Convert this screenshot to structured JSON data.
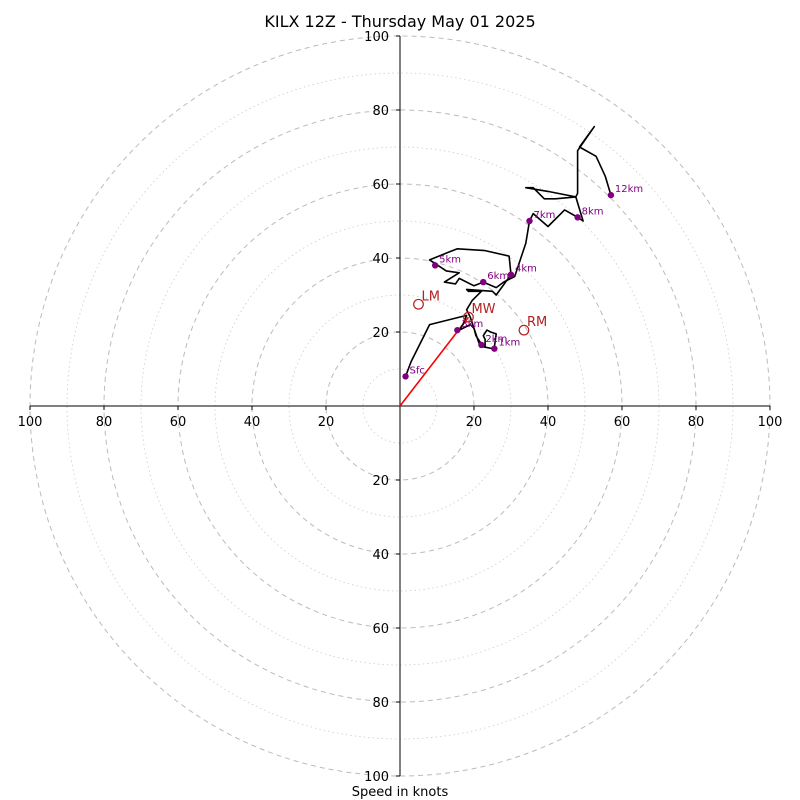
{
  "chart_data": {
    "type": "line",
    "title": "KILX 12Z - Thursday May 01 2025",
    "xlabel": "Speed in knots",
    "ylabel": "",
    "xlim": [
      -100,
      100
    ],
    "ylim": [
      -100,
      100
    ],
    "ring_step": 10,
    "ring_labels": [
      20,
      40,
      60,
      80,
      100
    ],
    "left_ticks": [
      "100",
      "80",
      "60",
      "40",
      "20"
    ],
    "right_ticks": [
      "20",
      "40",
      "60",
      "80",
      "100"
    ],
    "top_ticks": [
      "100",
      "80",
      "60",
      "40",
      "20"
    ],
    "bottom_ticks": [
      "20",
      "40",
      "60",
      "80",
      "100"
    ],
    "colors": {
      "trace": "#000000",
      "height_marker": "#800080",
      "storm_motion": "#b22222",
      "mean_wind_vector": "#ff0000",
      "ring_major": "#bbbbbb",
      "ring_minor": "#cccccc"
    },
    "series": [
      {
        "values": [
          [
            1.5,
            8
          ],
          [
            3,
            12
          ],
          [
            8,
            22
          ],
          [
            18,
            24.5
          ],
          [
            17,
            22
          ],
          [
            16,
            20.5
          ],
          [
            19,
            22
          ],
          [
            20,
            21
          ],
          [
            21,
            18
          ],
          [
            21.5,
            16.5
          ],
          [
            22,
            16
          ],
          [
            23,
            16
          ],
          [
            23,
            18
          ],
          [
            22.5,
            19
          ],
          [
            23.5,
            20.5
          ],
          [
            24.5,
            20
          ],
          [
            26,
            19.5
          ],
          [
            25.5,
            16
          ],
          [
            25,
            15.5
          ],
          [
            22.5,
            16
          ],
          [
            20.5,
            19
          ],
          [
            20,
            21
          ],
          [
            19,
            24
          ],
          [
            18,
            26
          ],
          [
            19.5,
            28.5
          ],
          [
            22,
            31
          ],
          [
            18.5,
            31
          ],
          [
            18,
            31.5
          ],
          [
            25,
            31
          ],
          [
            26,
            30
          ],
          [
            30,
            35.5
          ],
          [
            29.5,
            40.5
          ],
          [
            23,
            42
          ],
          [
            15.5,
            42.5
          ],
          [
            13,
            41.5
          ],
          [
            8,
            39.5
          ],
          [
            12.5,
            36.5
          ],
          [
            16,
            36
          ],
          [
            12,
            33.5
          ],
          [
            15,
            33
          ],
          [
            16,
            34.5
          ],
          [
            20,
            32.5
          ],
          [
            22.5,
            33.5
          ],
          [
            26,
            32
          ],
          [
            28,
            33.5
          ],
          [
            31,
            35
          ],
          [
            34,
            44
          ],
          [
            35,
            50
          ],
          [
            36,
            52
          ],
          [
            40,
            48.5
          ],
          [
            44.5,
            53
          ],
          [
            48,
            51
          ],
          [
            49.5,
            50
          ],
          [
            47.5,
            56.5
          ],
          [
            42,
            56
          ],
          [
            39,
            56
          ],
          [
            36,
            59
          ],
          [
            34,
            59
          ],
          [
            40,
            58
          ],
          [
            47.5,
            56.5
          ],
          [
            48,
            57.5
          ],
          [
            48,
            69
          ],
          [
            52.5,
            75.5
          ],
          [
            48.5,
            70
          ],
          [
            53,
            67.5
          ],
          [
            55.5,
            62
          ],
          [
            57,
            57
          ]
        ]
      }
    ],
    "height_markers": [
      {
        "label": "Sfc",
        "x": 1.5,
        "y": 8
      },
      {
        "label": "3km",
        "x": 15.5,
        "y": 20.5
      },
      {
        "label": "2km",
        "x": 22,
        "y": 16.5
      },
      {
        "label": "1km",
        "x": 25.5,
        "y": 15.5
      },
      {
        "label": "6km",
        "x": 22.5,
        "y": 33.5
      },
      {
        "label": "4km",
        "x": 30,
        "y": 35.5
      },
      {
        "label": "5km",
        "x": 9.5,
        "y": 38
      },
      {
        "label": "7km",
        "x": 35,
        "y": 50
      },
      {
        "label": "8km",
        "x": 48,
        "y": 51
      },
      {
        "label": "12km",
        "x": 57,
        "y": 57
      }
    ],
    "storm_motions": [
      {
        "label": "LM",
        "x": 5,
        "y": 27.5
      },
      {
        "label": "MW",
        "x": 18.5,
        "y": 24
      },
      {
        "label": "RM",
        "x": 33.5,
        "y": 20.5
      }
    ],
    "mean_wind_vector": {
      "x0": 0,
      "y0": 0,
      "x1": 18.5,
      "y1": 24
    }
  }
}
